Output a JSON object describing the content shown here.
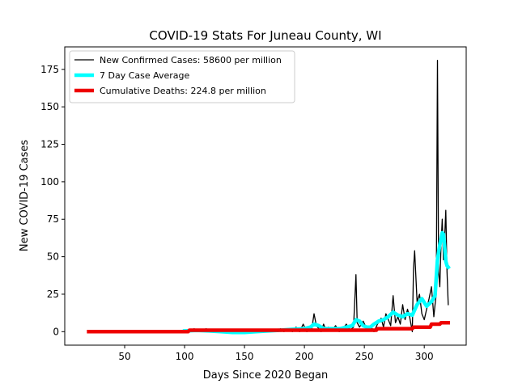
{
  "chart_data": {
    "type": "line",
    "title": "COVID-19 Stats For Juneau County, WI",
    "xlabel": "Days Since 2020 Began",
    "ylabel": "New COVID-19 Cases",
    "xlim": [
      0,
      335
    ],
    "ylim": [
      -9,
      190
    ],
    "xticks": [
      50,
      100,
      150,
      200,
      250,
      300
    ],
    "yticks": [
      0,
      25,
      50,
      75,
      100,
      125,
      150,
      175
    ],
    "grid": false,
    "legend_position": "top-left",
    "series": [
      {
        "name": "New Confirmed Cases: 58600 per million",
        "color": "#000000",
        "style": "thin line",
        "x": [
          20,
          60,
          85,
          100,
          103,
          106,
          108,
          110,
          112,
          115,
          118,
          120,
          125,
          130,
          140,
          150,
          160,
          170,
          178,
          180,
          183,
          186,
          190,
          193,
          196,
          199,
          202,
          204,
          206,
          208,
          210,
          212,
          214,
          216,
          218,
          220,
          223,
          226,
          229,
          232,
          235,
          238,
          241,
          243,
          244,
          246,
          249,
          252,
          255,
          258,
          261,
          264,
          266,
          268,
          270,
          272,
          274,
          276,
          278,
          280,
          282,
          284,
          286,
          288,
          290,
          291,
          292,
          294,
          296,
          298,
          300,
          302,
          304,
          306,
          308,
          309,
          310,
          311,
          312,
          313,
          314,
          315,
          316,
          317,
          318,
          319,
          320
        ],
        "y": [
          0,
          0,
          0,
          0,
          1,
          0,
          2,
          0,
          1,
          0,
          2,
          0,
          1,
          0,
          1,
          0,
          1,
          0,
          0,
          2,
          0,
          2,
          0,
          3,
          0,
          5,
          0,
          3,
          1,
          12,
          4,
          2,
          0,
          5,
          1,
          3,
          1,
          4,
          0,
          2,
          5,
          1,
          3,
          38,
          6,
          3,
          7,
          2,
          4,
          0,
          5,
          9,
          3,
          12,
          8,
          4,
          24,
          6,
          10,
          5,
          18,
          8,
          15,
          9,
          0,
          42,
          54,
          20,
          25,
          12,
          8,
          15,
          22,
          30,
          10,
          18,
          25,
          181,
          40,
          30,
          58,
          75,
          48,
          62,
          81,
          40,
          18
        ]
      },
      {
        "name": "7 Day Case Average",
        "color": "#00ffff",
        "style": "thick line",
        "x": [
          100,
          110,
          120,
          130,
          140,
          150,
          160,
          170,
          180,
          190,
          200,
          205,
          208,
          212,
          216,
          220,
          225,
          230,
          235,
          240,
          243,
          246,
          249,
          252,
          255,
          258,
          262,
          266,
          270,
          274,
          278,
          282,
          286,
          290,
          294,
          298,
          302,
          306,
          309,
          311,
          313,
          315,
          316,
          317,
          318,
          319,
          320
        ],
        "y": [
          0.5,
          0.8,
          0.5,
          0,
          -0.5,
          -0.5,
          0,
          0.5,
          1,
          1.5,
          2,
          3,
          5,
          4,
          2,
          2,
          2,
          2,
          3,
          4,
          8,
          7,
          4,
          3,
          3,
          5,
          7,
          8,
          10,
          13,
          11,
          10,
          12,
          11,
          18,
          22,
          17,
          20,
          24,
          48,
          58,
          66,
          65,
          57,
          47,
          44,
          43
        ]
      },
      {
        "name": "Cumulative Deaths: 224.8 per million",
        "color": "#ee0000",
        "style": "thick line",
        "x": [
          20,
          103,
          104,
          260,
          261,
          290,
          291,
          305,
          306,
          313,
          314,
          320
        ],
        "y": [
          0,
          0,
          1,
          1,
          2,
          2,
          3,
          3,
          5,
          5,
          6,
          6
        ]
      }
    ]
  }
}
